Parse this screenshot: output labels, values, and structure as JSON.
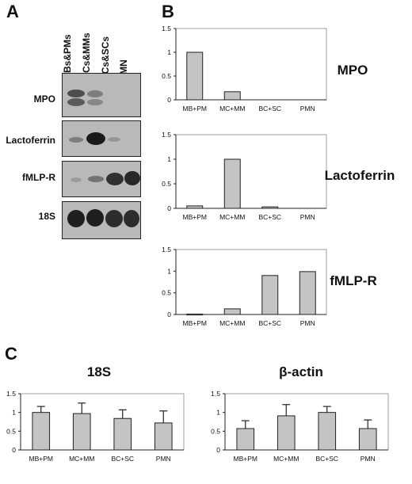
{
  "panels": {
    "a": "A",
    "b": "B",
    "c": "C"
  },
  "blot": {
    "lanes": [
      "MBs&PMs",
      "MCs&MMs",
      "BCs&SCs",
      "PMN"
    ],
    "rows": [
      "MPO",
      "Lactoferrin",
      "fMLP-R",
      "18S"
    ]
  },
  "colors": {
    "bar_fill": "#c4c4c4",
    "bar_stroke": "#222222",
    "blot_bg": "#b9b9b9",
    "band": "#2a2a2a"
  },
  "chart_data": [
    {
      "type": "bar",
      "title": "MPO",
      "categories": [
        "MB+PM",
        "MC+MM",
        "BC+SC",
        "PMN"
      ],
      "values": [
        1.0,
        0.17,
        0,
        0
      ],
      "yticks": [
        "0",
        "0.5",
        "1",
        "1.5"
      ],
      "ylim": [
        0,
        1.5
      ],
      "grid": false,
      "legend": null
    },
    {
      "type": "bar",
      "title": "Lactoferrin",
      "categories": [
        "MB+PM",
        "MC+MM",
        "BC+SC",
        "PMN"
      ],
      "values": [
        0.05,
        1.0,
        0.03,
        0
      ],
      "yticks": [
        "0",
        "0.5",
        "1",
        "1.5"
      ],
      "ylim": [
        0,
        1.5
      ],
      "grid": false,
      "legend": null
    },
    {
      "type": "bar",
      "title": "fMLP-R",
      "categories": [
        "MB+PM",
        "MC+MM",
        "BC+SC",
        "PMN"
      ],
      "values": [
        0.01,
        0.13,
        0.9,
        0.99
      ],
      "yticks": [
        "0",
        "0.5",
        "1",
        "1.5"
      ],
      "ylim": [
        0,
        1.5
      ],
      "grid": false,
      "legend": null
    },
    {
      "type": "bar",
      "title": "18S",
      "categories": [
        "MB+PM",
        "MC+MM",
        "BC+SC",
        "PMN"
      ],
      "values": [
        1.0,
        0.97,
        0.84,
        0.72
      ],
      "errors": [
        0.16,
        0.28,
        0.23,
        0.32
      ],
      "yticks": [
        "0",
        "0.5",
        "1",
        "1.5"
      ],
      "ylim": [
        0,
        1.5
      ],
      "grid": false,
      "legend": null
    },
    {
      "type": "bar",
      "title": "β-actin",
      "categories": [
        "MB+PM",
        "MC+MM",
        "BC+SC",
        "PMN"
      ],
      "values": [
        0.57,
        0.91,
        1.0,
        0.57
      ],
      "errors": [
        0.21,
        0.3,
        0.16,
        0.23
      ],
      "yticks": [
        "0",
        "0.5",
        "1",
        "1.5"
      ],
      "ylim": [
        0,
        1.5
      ],
      "grid": false,
      "legend": null
    }
  ]
}
